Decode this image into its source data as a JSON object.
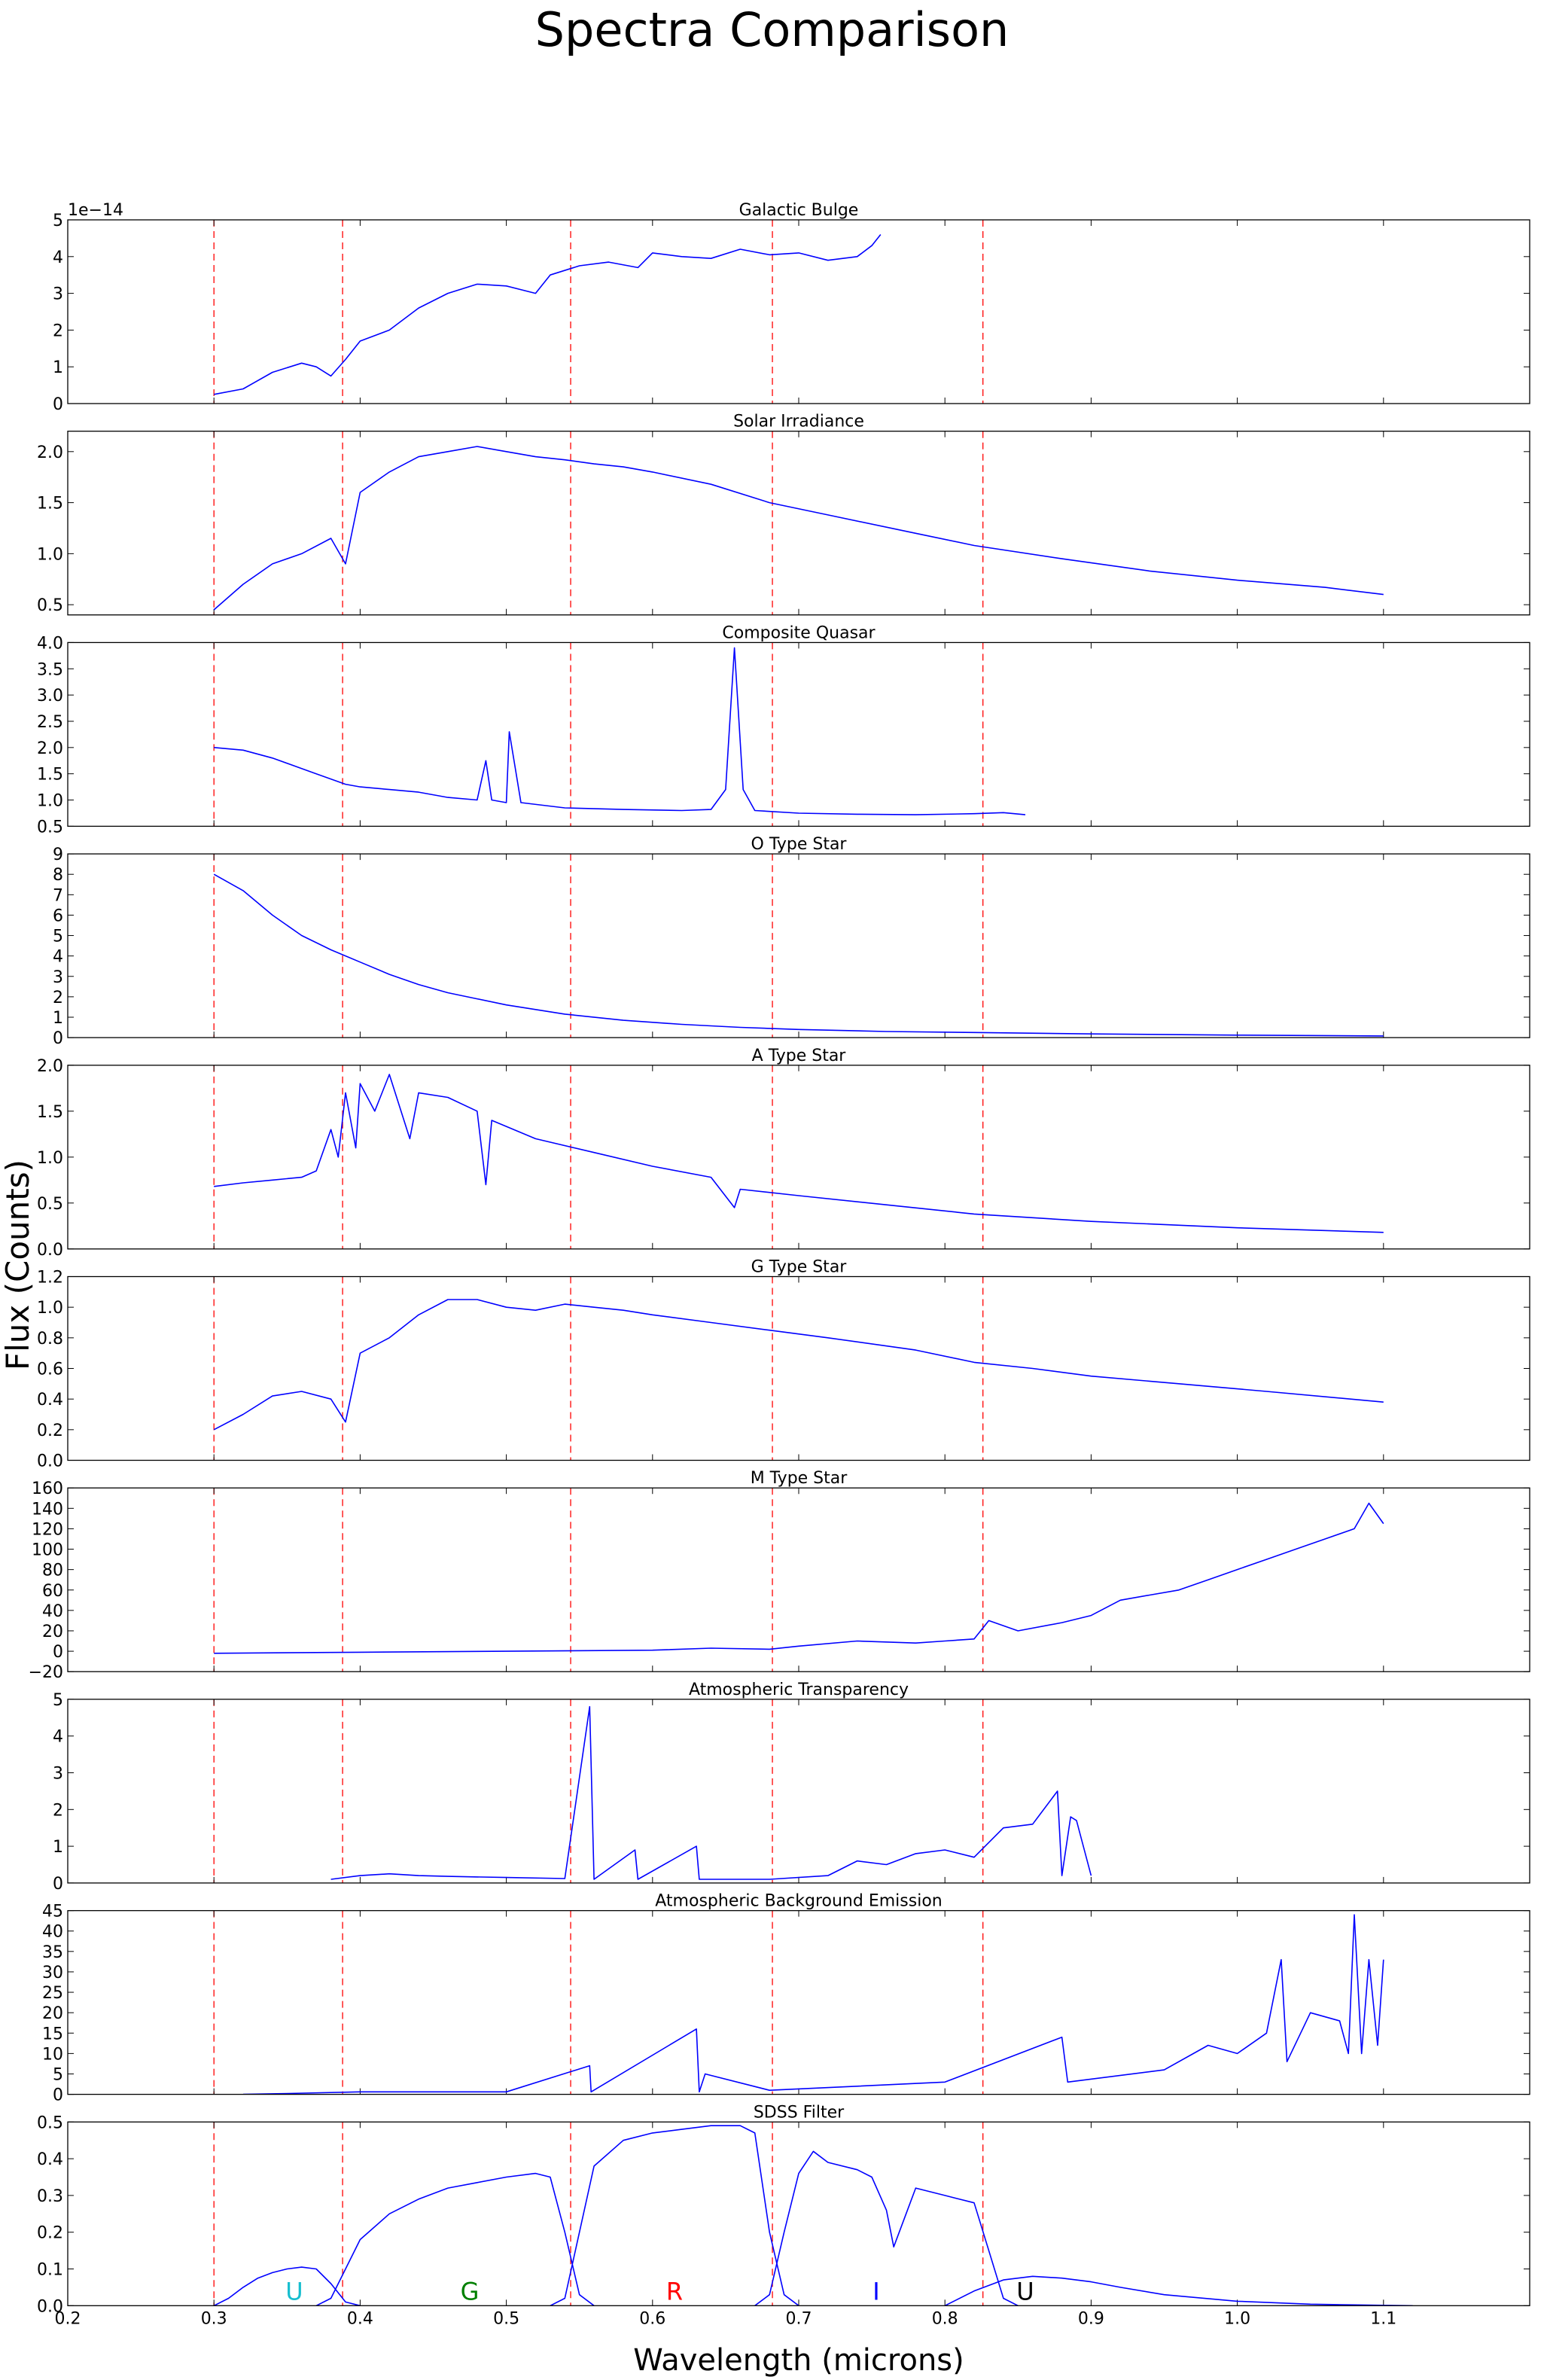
{
  "title": "Spectra Comparison",
  "xlabel": "Wavelength (microns)",
  "ylabel": "Flux (Counts)",
  "colors": {
    "spectrum": "#0000ff",
    "band_edge": "#ff0000",
    "axes": "#000000"
  },
  "chart_data": {
    "type": "line",
    "xlim": [
      0.2,
      1.2
    ],
    "xticks": [
      0.2,
      0.3,
      0.4,
      0.5,
      0.6,
      0.7,
      0.8,
      0.9,
      1.0,
      1.1
    ],
    "xtick_labels": [
      "0.2",
      "0.3",
      "0.4",
      "0.5",
      "0.6",
      "0.7",
      "0.8",
      "0.9",
      "1.0",
      "1.1"
    ],
    "band_edges": [
      0.3,
      0.388,
      0.544,
      0.682,
      0.826
    ],
    "panels": [
      {
        "title": "Galactic Bulge",
        "ylim": [
          0,
          5
        ],
        "yticks": [
          0,
          1,
          2,
          3,
          4,
          5
        ],
        "ytick_labels": [
          "0",
          "1",
          "2",
          "3",
          "4",
          "5"
        ],
        "offset_text": "1e−14",
        "series": [
          {
            "x": [
              0.3,
              0.32,
              0.34,
              0.36,
              0.37,
              0.38,
              0.39,
              0.4,
              0.42,
              0.44,
              0.46,
              0.48,
              0.5,
              0.52,
              0.53,
              0.55,
              0.57,
              0.59,
              0.6,
              0.62,
              0.64,
              0.66,
              0.68,
              0.7,
              0.72,
              0.74,
              0.75,
              0.756
            ],
            "y": [
              0.25,
              0.4,
              0.85,
              1.1,
              1.0,
              0.75,
              1.2,
              1.7,
              2.0,
              2.6,
              3.0,
              3.25,
              3.2,
              3.0,
              3.5,
              3.75,
              3.85,
              3.7,
              4.1,
              4.0,
              3.95,
              4.2,
              4.05,
              4.1,
              3.9,
              4.0,
              4.3,
              4.6
            ]
          }
        ]
      },
      {
        "title": "Solar Irradiance",
        "ylim": [
          0.4,
          2.2
        ],
        "yticks": [
          0.5,
          1.0,
          1.5,
          2.0
        ],
        "ytick_labels": [
          "0.5",
          "1.0",
          "1.5",
          "2.0"
        ],
        "series": [
          {
            "x": [
              0.3,
              0.32,
              0.34,
              0.36,
              0.38,
              0.39,
              0.4,
              0.42,
              0.44,
              0.46,
              0.48,
              0.5,
              0.52,
              0.54,
              0.56,
              0.58,
              0.6,
              0.64,
              0.68,
              0.72,
              0.78,
              0.82,
              0.88,
              0.94,
              1.0,
              1.06,
              1.1
            ],
            "y": [
              0.45,
              0.7,
              0.9,
              1.0,
              1.15,
              0.9,
              1.6,
              1.8,
              1.95,
              2.0,
              2.05,
              2.0,
              1.95,
              1.92,
              1.88,
              1.85,
              1.8,
              1.68,
              1.5,
              1.38,
              1.2,
              1.08,
              0.95,
              0.83,
              0.74,
              0.67,
              0.6
            ]
          }
        ]
      },
      {
        "title": "Composite Quasar",
        "ylim": [
          0.5,
          4.0
        ],
        "yticks": [
          0.5,
          1.0,
          1.5,
          2.0,
          2.5,
          3.0,
          3.5,
          4.0
        ],
        "ytick_labels": [
          "0.5",
          "1.0",
          "1.5",
          "2.0",
          "2.5",
          "3.0",
          "3.5",
          "4.0"
        ],
        "series": [
          {
            "x": [
              0.3,
              0.32,
              0.34,
              0.36,
              0.37,
              0.39,
              0.4,
              0.42,
              0.44,
              0.46,
              0.48,
              0.486,
              0.49,
              0.5,
              0.502,
              0.51,
              0.54,
              0.58,
              0.62,
              0.64,
              0.65,
              0.656,
              0.662,
              0.67,
              0.7,
              0.74,
              0.78,
              0.82,
              0.84,
              0.855
            ],
            "y": [
              2.0,
              1.95,
              1.8,
              1.6,
              1.5,
              1.3,
              1.25,
              1.2,
              1.15,
              1.05,
              1.0,
              1.75,
              1.0,
              0.95,
              2.3,
              0.95,
              0.85,
              0.82,
              0.8,
              0.82,
              1.2,
              3.9,
              1.2,
              0.8,
              0.75,
              0.73,
              0.72,
              0.74,
              0.76,
              0.72
            ]
          }
        ]
      },
      {
        "title": "O Type Star",
        "ylim": [
          0,
          9
        ],
        "yticks": [
          0,
          1,
          2,
          3,
          4,
          5,
          6,
          7,
          8,
          9
        ],
        "ytick_labels": [
          "0",
          "1",
          "2",
          "3",
          "4",
          "5",
          "6",
          "7",
          "8",
          "9"
        ],
        "series": [
          {
            "x": [
              0.3,
              0.31,
              0.32,
              0.34,
              0.36,
              0.38,
              0.4,
              0.42,
              0.44,
              0.46,
              0.48,
              0.5,
              0.54,
              0.58,
              0.62,
              0.66,
              0.7,
              0.76,
              0.82,
              0.9,
              1.0,
              1.1
            ],
            "y": [
              8.0,
              7.6,
              7.2,
              6.0,
              5.0,
              4.3,
              3.7,
              3.1,
              2.6,
              2.2,
              1.9,
              1.6,
              1.15,
              0.85,
              0.65,
              0.5,
              0.4,
              0.3,
              0.25,
              0.18,
              0.12,
              0.08
            ]
          }
        ]
      },
      {
        "title": "A Type Star",
        "ylim": [
          0,
          2.0
        ],
        "yticks": [
          0.0,
          0.5,
          1.0,
          1.5,
          2.0
        ],
        "ytick_labels": [
          "0.0",
          "0.5",
          "1.0",
          "1.5",
          "2.0"
        ],
        "series": [
          {
            "x": [
              0.3,
              0.32,
              0.34,
              0.36,
              0.37,
              0.38,
              0.385,
              0.39,
              0.397,
              0.4,
              0.41,
              0.42,
              0.434,
              0.44,
              0.46,
              0.48,
              0.486,
              0.49,
              0.52,
              0.56,
              0.6,
              0.64,
              0.656,
              0.66,
              0.7,
              0.76,
              0.82,
              0.9,
              1.0,
              1.1
            ],
            "y": [
              0.68,
              0.72,
              0.75,
              0.78,
              0.85,
              1.3,
              1.0,
              1.7,
              1.1,
              1.8,
              1.5,
              1.9,
              1.2,
              1.7,
              1.65,
              1.5,
              0.7,
              1.4,
              1.2,
              1.05,
              0.9,
              0.78,
              0.45,
              0.65,
              0.58,
              0.48,
              0.38,
              0.3,
              0.23,
              0.18
            ]
          }
        ]
      },
      {
        "title": "G Type Star",
        "ylim": [
          0,
          1.2
        ],
        "yticks": [
          0.0,
          0.2,
          0.4,
          0.6,
          0.8,
          1.0,
          1.2
        ],
        "ytick_labels": [
          "0.0",
          "0.2",
          "0.4",
          "0.6",
          "0.8",
          "1.0",
          "1.2"
        ],
        "series": [
          {
            "x": [
              0.3,
              0.32,
              0.34,
              0.36,
              0.38,
              0.39,
              0.4,
              0.42,
              0.44,
              0.46,
              0.48,
              0.5,
              0.52,
              0.54,
              0.56,
              0.58,
              0.6,
              0.64,
              0.68,
              0.72,
              0.78,
              0.82,
              0.86,
              0.9,
              0.96,
              1.02,
              1.1
            ],
            "y": [
              0.2,
              0.3,
              0.42,
              0.45,
              0.4,
              0.25,
              0.7,
              0.8,
              0.95,
              1.05,
              1.05,
              1.0,
              0.98,
              1.02,
              1.0,
              0.98,
              0.95,
              0.9,
              0.85,
              0.8,
              0.72,
              0.64,
              0.6,
              0.55,
              0.5,
              0.45,
              0.38
            ]
          }
        ]
      },
      {
        "title": "M Type Star",
        "ylim": [
          -20,
          160
        ],
        "yticks": [
          -20,
          0,
          20,
          40,
          60,
          80,
          100,
          120,
          140,
          160
        ],
        "ytick_labels": [
          "−20",
          "0",
          "20",
          "40",
          "60",
          "80",
          "100",
          "120",
          "140",
          "160"
        ],
        "series": [
          {
            "x": [
              0.3,
              0.4,
              0.5,
              0.6,
              0.64,
              0.68,
              0.7,
              0.74,
              0.78,
              0.8,
              0.82,
              0.83,
              0.85,
              0.88,
              0.9,
              0.92,
              0.94,
              0.96,
              0.98,
              1.0,
              1.02,
              1.04,
              1.06,
              1.08,
              1.09,
              1.1
            ],
            "y": [
              -2,
              -1,
              0,
              1,
              3,
              2,
              5,
              10,
              8,
              10,
              12,
              30,
              20,
              28,
              35,
              50,
              55,
              60,
              70,
              80,
              90,
              100,
              110,
              120,
              145,
              125
            ]
          }
        ]
      },
      {
        "title": "Atmospheric Transparency",
        "ylim": [
          0,
          5
        ],
        "yticks": [
          0,
          1,
          2,
          3,
          4,
          5
        ],
        "ytick_labels": [
          "0",
          "1",
          "2",
          "3",
          "4",
          "5"
        ],
        "series": [
          {
            "x": [
              0.38,
              0.4,
              0.42,
              0.44,
              0.46,
              0.5,
              0.54,
              0.557,
              0.56,
              0.588,
              0.59,
              0.63,
              0.632,
              0.64,
              0.68,
              0.72,
              0.74,
              0.76,
              0.78,
              0.8,
              0.82,
              0.84,
              0.86,
              0.877,
              0.88,
              0.886,
              0.89,
              0.9
            ],
            "y": [
              0.1,
              0.2,
              0.25,
              0.2,
              0.18,
              0.15,
              0.12,
              4.8,
              0.1,
              0.9,
              0.1,
              1.0,
              0.1,
              0.1,
              0.1,
              0.2,
              0.6,
              0.5,
              0.8,
              0.9,
              0.7,
              1.5,
              1.6,
              2.5,
              0.2,
              1.8,
              1.7,
              0.2
            ]
          }
        ]
      },
      {
        "title": "Atmospheric Background Emission",
        "ylim": [
          0,
          45
        ],
        "yticks": [
          0,
          5,
          10,
          15,
          20,
          25,
          30,
          35,
          40,
          45
        ],
        "ytick_labels": [
          "0",
          "5",
          "10",
          "15",
          "20",
          "25",
          "30",
          "35",
          "40",
          "45"
        ],
        "series": [
          {
            "x": [
              0.32,
              0.35,
              0.4,
              0.5,
              0.557,
              0.558,
              0.63,
              0.632,
              0.636,
              0.68,
              0.74,
              0.8,
              0.88,
              0.884,
              0.95,
              0.98,
              1.0,
              1.02,
              1.03,
              1.034,
              1.05,
              1.07,
              1.076,
              1.08,
              1.085,
              1.09,
              1.096,
              1.1
            ],
            "y": [
              0,
              0.2,
              0.6,
              0.6,
              7,
              0.6,
              16,
              0.6,
              5,
              1,
              2,
              3,
              14,
              3,
              6,
              12,
              10,
              15,
              33,
              8,
              20,
              18,
              10,
              44,
              10,
              33,
              12,
              33
            ]
          }
        ]
      },
      {
        "title": "SDSS Filter",
        "ylim": [
          0,
          0.5
        ],
        "yticks": [
          0.0,
          0.1,
          0.2,
          0.3,
          0.4,
          0.5
        ],
        "ytick_labels": [
          "0.0",
          "0.1",
          "0.2",
          "0.3",
          "0.4",
          "0.5"
        ],
        "filters": [
          {
            "label": "U",
            "label_x": 0.355,
            "color": "#17becf",
            "x": [
              0.3,
              0.31,
              0.32,
              0.33,
              0.34,
              0.35,
              0.36,
              0.37,
              0.38,
              0.39,
              0.4
            ],
            "y": [
              0.0,
              0.02,
              0.05,
              0.075,
              0.09,
              0.1,
              0.105,
              0.1,
              0.06,
              0.01,
              0.0
            ]
          },
          {
            "label": "G",
            "label_x": 0.475,
            "color": "#008000",
            "x": [
              0.37,
              0.38,
              0.39,
              0.4,
              0.42,
              0.44,
              0.46,
              0.48,
              0.5,
              0.52,
              0.53,
              0.54,
              0.55,
              0.56
            ],
            "y": [
              0.0,
              0.02,
              0.1,
              0.18,
              0.25,
              0.29,
              0.32,
              0.335,
              0.35,
              0.36,
              0.35,
              0.2,
              0.03,
              0.0
            ]
          },
          {
            "label": "R",
            "label_x": 0.615,
            "color": "#ff0000",
            "x": [
              0.53,
              0.54,
              0.55,
              0.56,
              0.58,
              0.6,
              0.62,
              0.64,
              0.66,
              0.67,
              0.68,
              0.69,
              0.7
            ],
            "y": [
              0.0,
              0.02,
              0.2,
              0.38,
              0.45,
              0.47,
              0.48,
              0.49,
              0.49,
              0.47,
              0.2,
              0.03,
              0.0
            ]
          },
          {
            "label": "I",
            "label_x": 0.753,
            "color": "#0000ff",
            "x": [
              0.67,
              0.68,
              0.69,
              0.7,
              0.71,
              0.72,
              0.74,
              0.75,
              0.76,
              0.765,
              0.78,
              0.8,
              0.82,
              0.83,
              0.84,
              0.85
            ],
            "y": [
              0.0,
              0.03,
              0.2,
              0.36,
              0.42,
              0.39,
              0.37,
              0.35,
              0.26,
              0.16,
              0.32,
              0.3,
              0.28,
              0.15,
              0.02,
              0.0
            ]
          },
          {
            "label": "U",
            "label_x": 0.855,
            "color": "#000000",
            "x": [
              0.8,
              0.82,
              0.84,
              0.86,
              0.88,
              0.9,
              0.92,
              0.95,
              1.0,
              1.05,
              1.1,
              1.12
            ],
            "y": [
              0.0,
              0.04,
              0.07,
              0.08,
              0.075,
              0.065,
              0.05,
              0.03,
              0.012,
              0.004,
              0.001,
              0.0
            ]
          }
        ]
      }
    ]
  }
}
